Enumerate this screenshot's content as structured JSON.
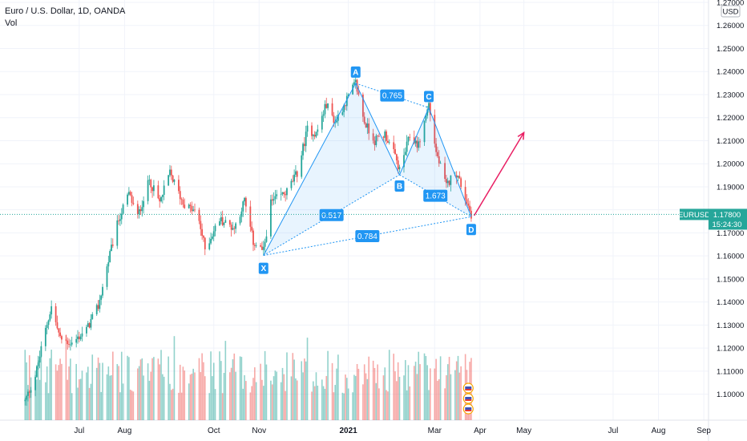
{
  "legend": {
    "title": "Euro / U.S. Dollar, 1D, OANDA",
    "indicator": "Vol"
  },
  "currency_badge": "USD",
  "chart_data": {
    "type": "candlestick",
    "symbol": "EURUSD",
    "last_price": "1.17800",
    "countdown": "15:24:30",
    "ylim": [
      1.095,
      1.27
    ],
    "y_ticks": [
      "1.27000",
      "1.26000",
      "1.25000",
      "1.24000",
      "1.23000",
      "1.22000",
      "1.21000",
      "1.20000",
      "1.19000",
      "1.18000",
      "1.17000",
      "1.16000",
      "1.15000",
      "1.14000",
      "1.13000",
      "1.12000",
      "1.11000",
      "1.10000"
    ],
    "x_ticks": [
      "Jul",
      "Aug",
      "Oct",
      "Nov",
      "2021",
      "Mar",
      "Apr",
      "May",
      "Jul",
      "Aug",
      "Sep"
    ],
    "price_path": [
      [
        "2020-05-25",
        1.097
      ],
      [
        "2020-06-01",
        1.108
      ],
      [
        "2020-06-08",
        1.128
      ],
      [
        "2020-06-12",
        1.138
      ],
      [
        "2020-06-18",
        1.124
      ],
      [
        "2020-06-26",
        1.122
      ],
      [
        "2020-07-06",
        1.128
      ],
      [
        "2020-07-14",
        1.138
      ],
      [
        "2020-07-21",
        1.158
      ],
      [
        "2020-07-28",
        1.176
      ],
      [
        "2020-08-04",
        1.187
      ],
      [
        "2020-08-10",
        1.177
      ],
      [
        "2020-08-18",
        1.193
      ],
      [
        "2020-08-25",
        1.183
      ],
      [
        "2020-09-01",
        1.196
      ],
      [
        "2020-09-10",
        1.183
      ],
      [
        "2020-09-20",
        1.178
      ],
      [
        "2020-09-25",
        1.163
      ],
      [
        "2020-10-05",
        1.176
      ],
      [
        "2020-10-15",
        1.172
      ],
      [
        "2020-10-22",
        1.184
      ],
      [
        "2020-10-28",
        1.166
      ],
      [
        "2020-11-04",
        1.162
      ],
      [
        "2020-11-09",
        1.183
      ],
      [
        "2020-11-20",
        1.188
      ],
      [
        "2020-11-27",
        1.196
      ],
      [
        "2020-12-04",
        1.215
      ],
      [
        "2020-12-10",
        1.213
      ],
      [
        "2020-12-17",
        1.226
      ],
      [
        "2020-12-23",
        1.218
      ],
      [
        "2020-12-31",
        1.228
      ],
      [
        "2021-01-06",
        1.235
      ],
      [
        "2021-01-12",
        1.218
      ],
      [
        "2021-01-19",
        1.21
      ],
      [
        "2021-01-26",
        1.213
      ],
      [
        "2021-02-02",
        1.203
      ],
      [
        "2021-02-05",
        1.197
      ],
      [
        "2021-02-12",
        1.212
      ],
      [
        "2021-02-18",
        1.208
      ],
      [
        "2021-02-25",
        1.226
      ],
      [
        "2021-03-02",
        1.205
      ],
      [
        "2021-03-09",
        1.19
      ],
      [
        "2021-03-15",
        1.197
      ],
      [
        "2021-03-19",
        1.191
      ],
      [
        "2021-03-26",
        1.178
      ]
    ],
    "volume_range": [
      0.3,
      1.0
    ],
    "pattern": {
      "name": "XABCD harmonic",
      "points": [
        {
          "label": "X",
          "date": "2020-11-04",
          "price": 1.1602
        },
        {
          "label": "A",
          "date": "2021-01-06",
          "price": 1.2349
        },
        {
          "label": "B",
          "date": "2021-02-05",
          "price": 1.1952
        },
        {
          "label": "C",
          "date": "2021-02-25",
          "price": 1.2243
        },
        {
          "label": "D",
          "date": "2021-03-26",
          "price": 1.177
        }
      ],
      "ratios": [
        {
          "label": "0.765",
          "between": [
            "A",
            "C"
          ]
        },
        {
          "label": "0.517",
          "between": [
            "X",
            "B"
          ]
        },
        {
          "label": "1.673",
          "between": [
            "B",
            "D"
          ]
        },
        {
          "label": "0.784",
          "between": [
            "X",
            "D"
          ]
        }
      ],
      "projection": {
        "from": [
          "2021-03-28",
          1.1775
        ],
        "to": [
          "2021-05-01",
          1.2135
        ]
      }
    },
    "colors": {
      "up": "#26a69a",
      "down": "#ef5350",
      "pattern_line": "#2196f3",
      "pattern_fill": "#2196f3",
      "arrow": "#e91e63",
      "price_line": "#26a69a"
    }
  }
}
